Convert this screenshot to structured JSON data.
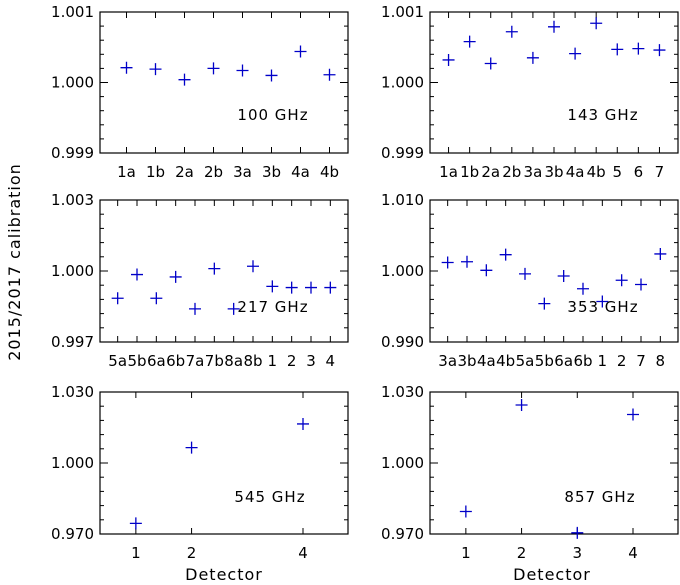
{
  "figure": {
    "ylabel": "2015/2017 calibration",
    "xlabel": "Detector"
  },
  "chart_data": [
    {
      "type": "scatter",
      "label": "100 GHz",
      "categories": [
        "1a",
        "1b",
        "2a",
        "2b",
        "3a",
        "3b",
        "4a",
        "4b"
      ],
      "values": [
        1.00021,
        1.00019,
        1.00004,
        1.0002,
        1.00017,
        1.0001,
        1.00044,
        1.00011
      ],
      "ylim": [
        0.999,
        1.001
      ],
      "yticks": [
        "0.999",
        "1.000",
        "1.001"
      ]
    },
    {
      "type": "scatter",
      "label": "143 GHz",
      "categories": [
        "1a",
        "1b",
        "2a",
        "2b",
        "3a",
        "3b",
        "4a",
        "4b",
        "5",
        "6",
        "7"
      ],
      "values": [
        1.00032,
        1.00058,
        1.00027,
        1.00072,
        1.00035,
        1.00079,
        1.00041,
        1.00084,
        1.00047,
        1.00048,
        1.00046
      ],
      "ylim": [
        0.999,
        1.001
      ],
      "yticks": [
        "0.999",
        "1.000",
        "1.001"
      ]
    },
    {
      "type": "scatter",
      "label": "217 GHz",
      "categories": [
        "5a",
        "5b",
        "6a",
        "6b",
        "7a",
        "7b",
        "8a",
        "8b",
        "1",
        "2",
        "3",
        "4"
      ],
      "values": [
        0.99885,
        0.99985,
        0.99885,
        0.99975,
        0.9984,
        1.0001,
        0.9984,
        1.0002,
        0.99935,
        0.9993,
        0.9993,
        0.9993
      ],
      "ylim": [
        0.997,
        1.003
      ],
      "yticks": [
        "0.997",
        "1.000",
        "1.003"
      ]
    },
    {
      "type": "scatter",
      "label": "353 GHz",
      "categories": [
        "3a",
        "3b",
        "4a",
        "4b",
        "5a",
        "5b",
        "6a",
        "6b",
        "1",
        "2",
        "7",
        "8"
      ],
      "values": [
        1.0012,
        1.0013,
        1.0001,
        1.0023,
        0.9996,
        0.9954,
        0.9993,
        0.9975,
        0.9957,
        0.9987,
        0.9981,
        1.0024
      ],
      "ylim": [
        0.99,
        1.01
      ],
      "yticks": [
        "0.990",
        "1.000",
        "1.010"
      ]
    },
    {
      "type": "scatter",
      "label": "545 GHz",
      "categories": [
        "1",
        "2",
        "4"
      ],
      "values": [
        0.9745,
        1.0065,
        1.0165
      ],
      "ylim": [
        0.97,
        1.03
      ],
      "yticks": [
        "0.970",
        "1.000",
        "1.030"
      ]
    },
    {
      "type": "scatter",
      "label": "857 GHz",
      "categories": [
        "1",
        "2",
        "3",
        "4"
      ],
      "values": [
        0.9795,
        1.0245,
        0.9705,
        1.0205
      ],
      "ylim": [
        0.97,
        1.03
      ],
      "yticks": [
        "0.970",
        "1.000",
        "1.030"
      ]
    }
  ]
}
